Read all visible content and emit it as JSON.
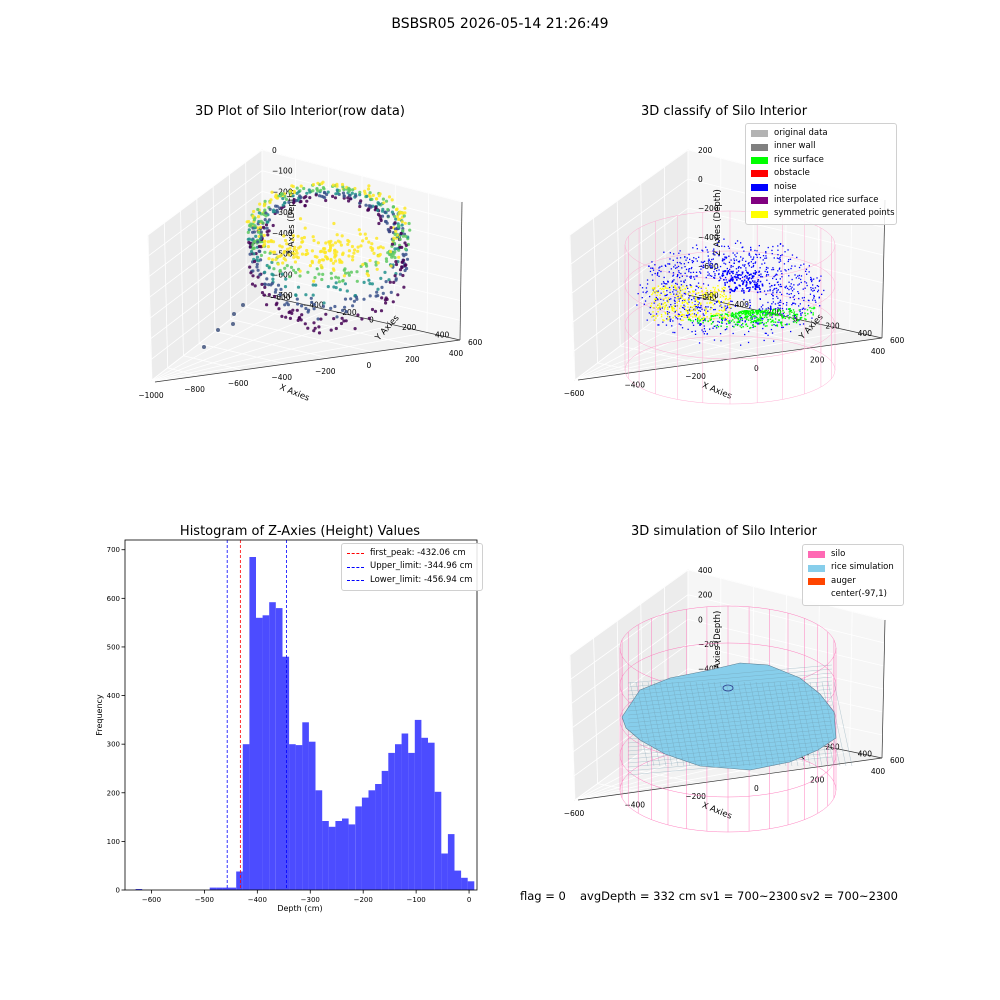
{
  "suptitle": "BSBSR05 2026-05-14 21:26:49",
  "panels": {
    "raw": {
      "title": "3D Plot of Silo Interior(row data)",
      "xlabel": "X Axies",
      "ylabel": "Y Axies",
      "zlabel": "Z Axies (Depth)",
      "xticks": [
        "−1000",
        "−800",
        "−600",
        "−400",
        "−200",
        "0",
        "200",
        "400"
      ],
      "yticks": [
        "600",
        "400",
        "200",
        "0",
        "−200",
        "−400",
        "−600"
      ],
      "zticks": [
        "0",
        "−100",
        "−200",
        "−300",
        "−400",
        "−500",
        "−600",
        "−700"
      ]
    },
    "classify": {
      "title": "3D classify of Silo Interior",
      "xlabel": "X Axies",
      "ylabel": "Y Axies",
      "zlabel": "Z Axies (Depth)",
      "xticks": [
        "−600",
        "−400",
        "−200",
        "0",
        "200",
        "400"
      ],
      "yticks": [
        "600",
        "400",
        "200",
        "0",
        "−200",
        "−400",
        "−600"
      ],
      "zticks": [
        "200",
        "0",
        "−200",
        "−400",
        "−600",
        "−800"
      ],
      "legend": [
        {
          "label": "original data",
          "color": "#b3b3b3"
        },
        {
          "label": "inner wall",
          "color": "#808080"
        },
        {
          "label": "rice surface",
          "color": "#00ff00"
        },
        {
          "label": "obstacle",
          "color": "#ff0000"
        },
        {
          "label": "noise",
          "color": "#0000ff"
        },
        {
          "label": "interpolated rice surface",
          "color": "#800080"
        },
        {
          "label": "symmetric generated points",
          "color": "#ffff00"
        }
      ]
    },
    "simulation": {
      "title": "3D simulation of Silo Interior",
      "xlabel": "X Axies",
      "ylabel": "Y Axies",
      "zlabel": "Z Axies (Depth)",
      "xticks": [
        "−600",
        "−400",
        "−200",
        "0",
        "200",
        "400"
      ],
      "yticks": [
        "600",
        "400",
        "200",
        "0",
        "−200",
        "−400",
        "−600"
      ],
      "zticks": [
        "400",
        "200",
        "0",
        "−200",
        "−400",
        "−600",
        "−800"
      ],
      "legend": [
        {
          "label": "silo",
          "color": "#ff69b4"
        },
        {
          "label": "rice simulation",
          "color": "#87ceeb"
        },
        {
          "label": "auger",
          "color": "#ff4500"
        },
        {
          "label": "center(-97,1)",
          "color": ""
        }
      ]
    }
  },
  "chart_data": {
    "type": "bar",
    "title": "Histogram of Z-Axies (Height) Values",
    "xlabel": "Depth (cm)",
    "ylabel": "Frequency",
    "xlim": [
      -650,
      15
    ],
    "ylim": [
      0,
      720
    ],
    "xticks": [
      -600,
      -500,
      -400,
      -300,
      -200,
      -100,
      0
    ],
    "yticks": [
      0,
      100,
      200,
      300,
      400,
      500,
      600,
      700
    ],
    "bin_start": -490,
    "bin_width": 12.5,
    "bin_counts": [
      5,
      5,
      5,
      5,
      38,
      300,
      685,
      560,
      565,
      592,
      580,
      480,
      300,
      298,
      345,
      305,
      205,
      142,
      130,
      142,
      147,
      135,
      172,
      190,
      205,
      218,
      245,
      282,
      300,
      322,
      282,
      350,
      313,
      303,
      202,
      75,
      115,
      40,
      25,
      18
    ],
    "small_bins": [
      {
        "x": -630,
        "w": 12.5,
        "count": 2
      }
    ],
    "color": "#0000ff",
    "lines": [
      {
        "label": "first_peak: -432.06 cm",
        "x": -432.06,
        "color": "#ff0000"
      },
      {
        "label": "Upper_limit: -344.96 cm",
        "x": -344.96,
        "color": "#0000ff"
      },
      {
        "label": "Lower_limit: -456.94 cm",
        "x": -456.94,
        "color": "#0000ff"
      }
    ],
    "legend_position": "top-right"
  },
  "footer": {
    "flag": "flag = 0",
    "avg": "avgDepth = 332 cm",
    "sv1": "sv1 = 700~2300",
    "sv2": "sv2 = 700~2300"
  }
}
